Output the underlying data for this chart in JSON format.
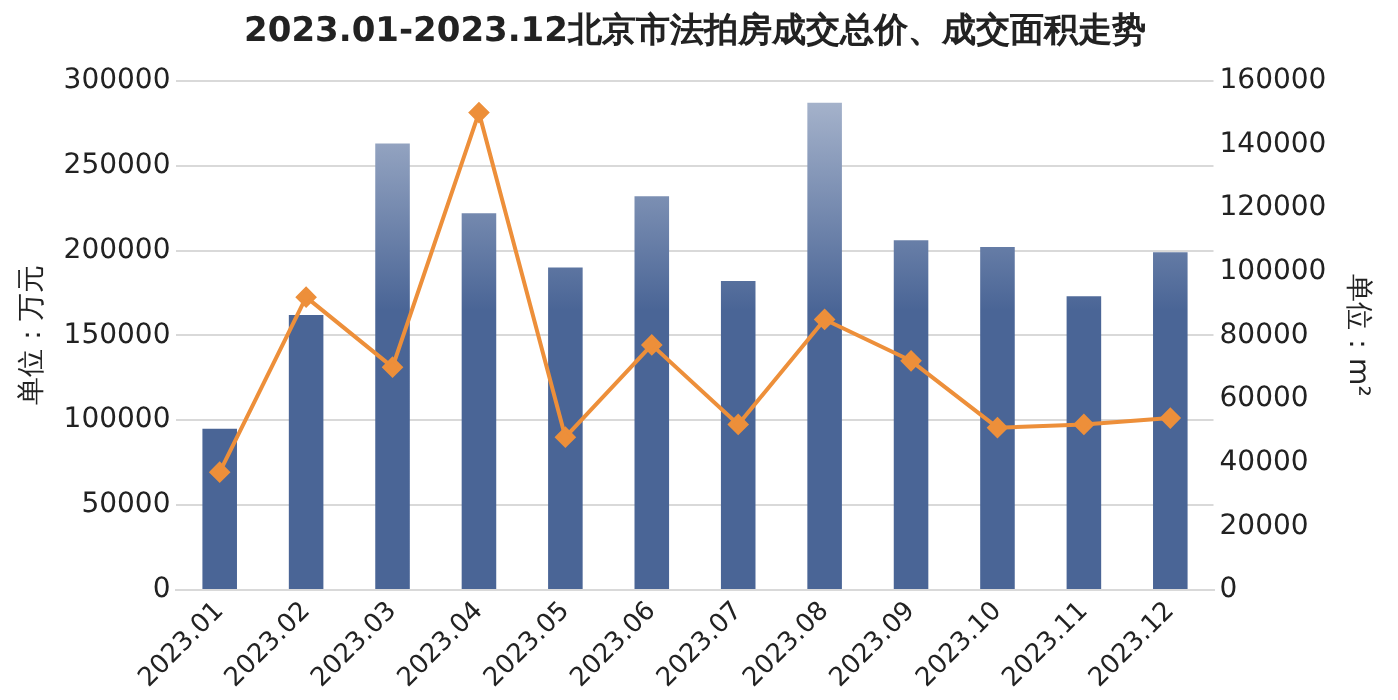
{
  "chart_data": {
    "type": "bar",
    "title": "2023.01-2023.12北京市法拍房成交总价、成交面积走势",
    "ylabel": "单位：万元",
    "y2label": "单位：m²",
    "categories": [
      "2023.01",
      "2023.02",
      "2023.03",
      "2023.04",
      "2023.05",
      "2023.06",
      "2023.07",
      "2023.08",
      "2023.09",
      "2023.10",
      "2023.11",
      "2023.12"
    ],
    "series": [
      {
        "color": "#4a6596",
        "values": [
          95000,
          162000,
          263000,
          222000,
          190000,
          232000,
          182000,
          287000,
          206000,
          202000,
          173000,
          199000
        ]
      },
      {
        "type": "line",
        "axis": "y2",
        "color": "#ed8f3a",
        "marker": "diamond",
        "values": [
          37000,
          92000,
          70000,
          150000,
          48000,
          77000,
          52000,
          85000,
          72000,
          51000,
          52000,
          54000
        ]
      }
    ],
    "ylim": [
      0,
      300000
    ],
    "yticks": [
      0,
      50000,
      100000,
      150000,
      200000,
      250000,
      300000
    ],
    "y2lim": [
      0,
      160000
    ],
    "y2ticks": [
      0,
      20000,
      40000,
      60000,
      80000,
      100000,
      120000,
      140000,
      160000
    ],
    "grid": "y",
    "legend": false
  }
}
